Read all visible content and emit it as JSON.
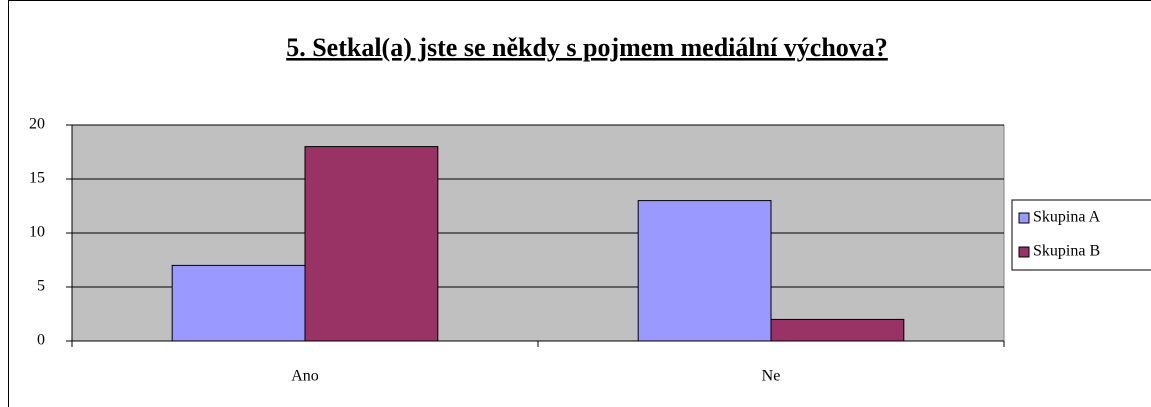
{
  "chart_data": {
    "type": "bar",
    "title": "5. Setkal(a) jste se někdy s pojmem mediální výchova?",
    "categories": [
      "Ano",
      "Ne"
    ],
    "series": [
      {
        "name": "Skupina A",
        "color": "#9999ff",
        "values": [
          7,
          13
        ]
      },
      {
        "name": "Skupina B",
        "color": "#993366",
        "values": [
          18,
          2
        ]
      }
    ],
    "ylim": [
      0,
      20
    ],
    "yticks": [
      0,
      5,
      10,
      15,
      20
    ],
    "grid": true,
    "legend": "right"
  }
}
